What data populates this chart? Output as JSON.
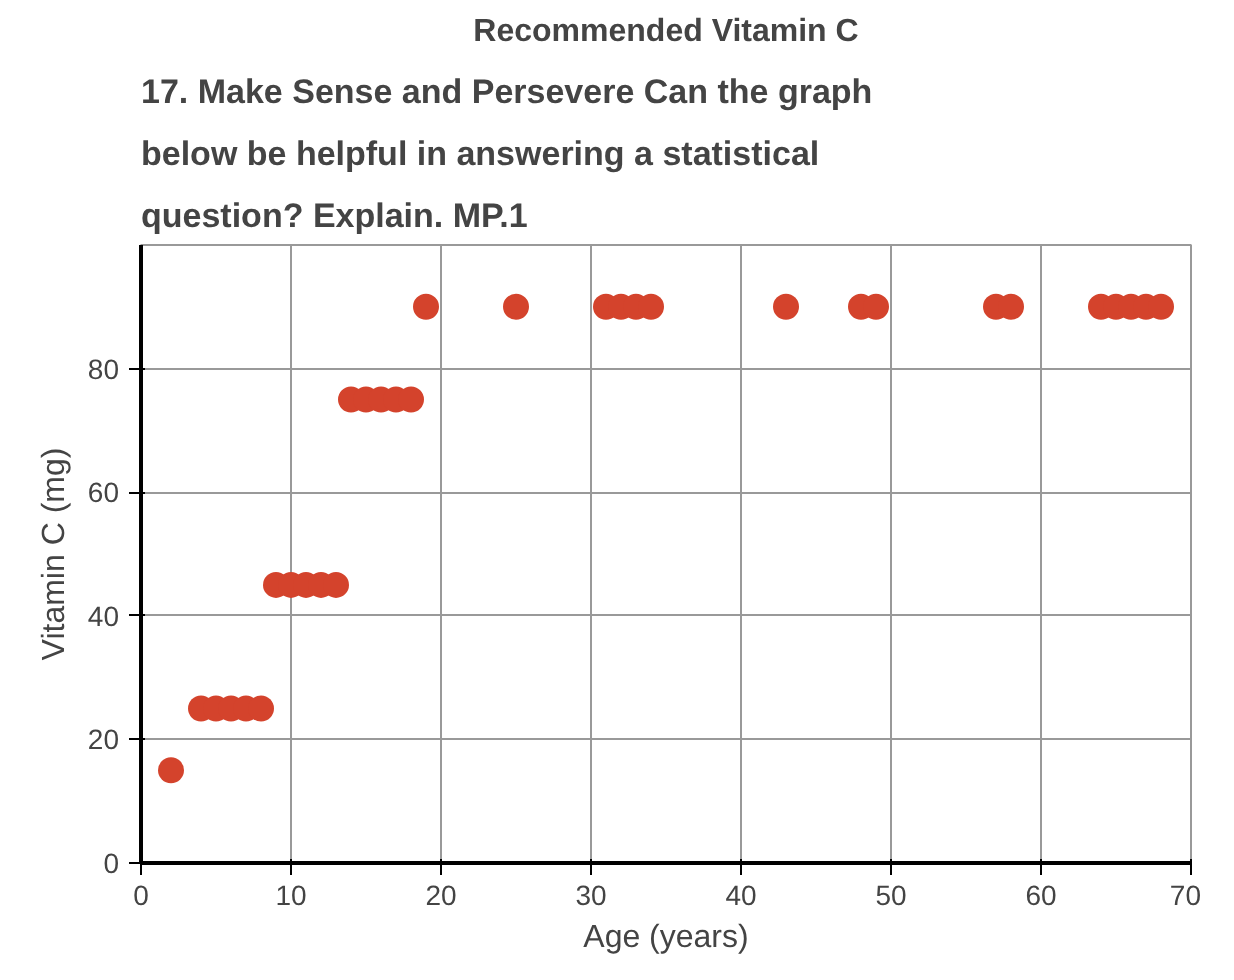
{
  "chart_data": {
    "type": "scatter",
    "title": "Recommended Vitamin C",
    "xlabel": "Age (years)",
    "ylabel": "Vitamin C (mg)",
    "annotations": [
      "17. Make Sense and Persevere Can the graph",
      "below be helpful in answering a statistical",
      "question? Explain. MP.1"
    ],
    "series": [
      {
        "color": "#d4432c",
        "x": [
          2,
          4,
          5,
          6,
          7,
          8,
          9,
          10,
          11,
          12,
          13,
          14,
          15,
          16,
          17,
          18,
          19,
          25,
          31,
          32,
          33,
          34,
          43,
          48,
          49,
          57,
          58,
          64,
          65,
          66,
          67,
          68
        ],
        "values": [
          15,
          25,
          25,
          25,
          25,
          25,
          45,
          45,
          45,
          45,
          45,
          75,
          75,
          75,
          75,
          75,
          90,
          90,
          90,
          90,
          90,
          90,
          90,
          90,
          90,
          90,
          90,
          90,
          90,
          90,
          90,
          90
        ]
      }
    ],
    "xlim": [
      0,
      70
    ],
    "ylim": [
      0,
      100
    ],
    "xticks": [
      0,
      10,
      20,
      30,
      40,
      50,
      60,
      70
    ],
    "yticks": [
      0,
      20,
      40,
      60,
      80
    ],
    "grid": true,
    "marker": "circle"
  }
}
